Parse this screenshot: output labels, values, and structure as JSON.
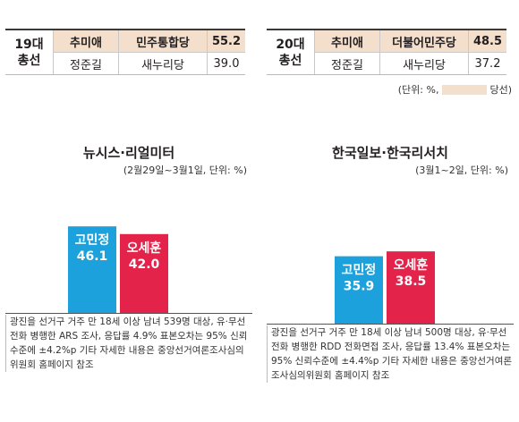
{
  "results": [
    {
      "label_line1": "19대",
      "label_line2": "총선",
      "rows": [
        {
          "candidate": "추미애",
          "party": "민주통합당",
          "pct": "55.2",
          "winner": true
        },
        {
          "candidate": "정준길",
          "party": "새누리당",
          "pct": "39.0",
          "winner": false
        }
      ]
    },
    {
      "label_line1": "20대",
      "label_line2": "총선",
      "rows": [
        {
          "candidate": "추미애",
          "party": "더불어민주당",
          "pct": "48.5",
          "winner": true
        },
        {
          "candidate": "정준길",
          "party": "새누리당",
          "pct": "37.2",
          "winner": false
        }
      ]
    }
  ],
  "unit_note": {
    "prefix": "(단위: %,",
    "suffix": "당선)"
  },
  "colors": {
    "winner_highlight": "#f3dfcc",
    "blue": "#1ca1dc",
    "red": "#e3234a"
  },
  "chart_data": [
    {
      "type": "bar",
      "title": "뉴시스·리얼미터",
      "subtitle": "(2월29일~3월1일, 단위: %)",
      "categories": [
        "고민정",
        "오세훈"
      ],
      "values": [
        46.1,
        42.0
      ],
      "value_labels": [
        "46.1",
        "42.0"
      ],
      "colors": [
        "#1ca1dc",
        "#e3234a"
      ],
      "note": "광진을 선거구 거주 만 18세 이상 남녀 539명 대상, 유·무선전화 병행한 ARS 조사, 응답률 4.9% 표본오차는 95% 신뢰수준에 ±4.2%p 기타 자세한 내용은 중앙선거여론조사심의위원회 홈페이지 참조"
    },
    {
      "type": "bar",
      "title": "한국일보·한국리서치",
      "subtitle": "(3월1~2일, 단위: %)",
      "categories": [
        "고민정",
        "오세훈"
      ],
      "values": [
        35.9,
        38.5
      ],
      "value_labels": [
        "35.9",
        "38.5"
      ],
      "colors": [
        "#1ca1dc",
        "#e3234a"
      ],
      "note": "광진을 선거구 거주 만 18세 이상 남녀 500명 대상, 유·무선전화 병행한 RDD 전화면접 조사, 응답률 13.4% 표본오차는 95% 신뢰수준에 ±4.4%p 기타 자세한 내용은 중앙선거여론조사심의위원회 홈페이지 참조"
    }
  ]
}
